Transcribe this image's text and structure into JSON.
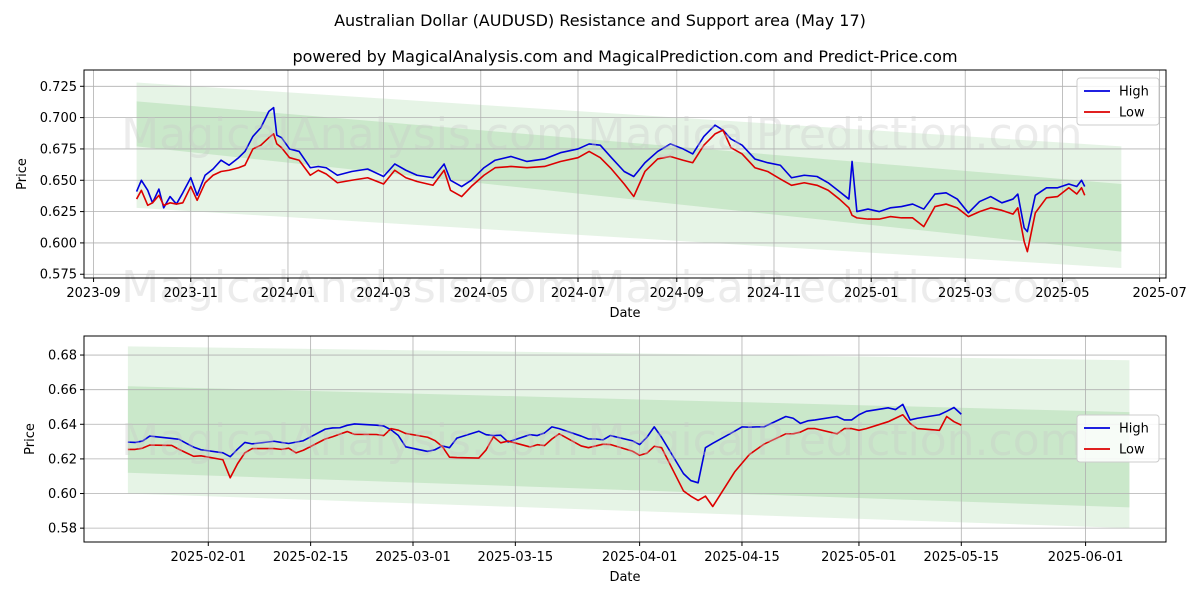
{
  "title": "Australian Dollar (AUDUSD) Resistance and Support area (May 17)",
  "subtitle": "powered by MagicalAnalysis.com and MagicalPrediction.com and Predict-Price.com",
  "watermarks": [
    "MagicalAnalysis.com",
    "MagicalPrediction.com"
  ],
  "colors": {
    "high": "#0000dd",
    "low": "#dd0000",
    "band": "#4caf50",
    "grid": "#b0b0b0"
  },
  "chart_data": [
    {
      "type": "line",
      "xlabel": "Date",
      "ylabel": "Price",
      "xlim": [
        "2023-08-26",
        "2025-07-05"
      ],
      "ylim": [
        0.572,
        0.738
      ],
      "x_ticks": [
        "2023-09",
        "2023-11",
        "2024-01",
        "2024-03",
        "2024-05",
        "2024-07",
        "2024-09",
        "2024-11",
        "2025-01",
        "2025-03",
        "2025-05",
        "2025-07"
      ],
      "y_ticks": [
        0.575,
        0.6,
        0.625,
        0.65,
        0.675,
        0.7,
        0.725
      ],
      "grid": true,
      "legend_position": "top-right",
      "bands": [
        {
          "name": "outer",
          "x": [
            "2023-09-28",
            "2025-06-07"
          ],
          "upper": [
            0.728,
            0.677
          ],
          "lower": [
            0.628,
            0.58
          ]
        },
        {
          "name": "inner",
          "x": [
            "2023-09-28",
            "2025-06-07"
          ],
          "upper": [
            0.713,
            0.647
          ],
          "lower": [
            0.677,
            0.593
          ]
        }
      ],
      "series": [
        {
          "name": "High",
          "x": [
            "2023-09-28",
            "2023-10-01",
            "2023-10-05",
            "2023-10-08",
            "2023-10-12",
            "2023-10-15",
            "2023-10-19",
            "2023-10-23",
            "2023-10-27",
            "2023-11-01",
            "2023-11-05",
            "2023-11-10",
            "2023-11-15",
            "2023-11-20",
            "2023-11-25",
            "2023-12-01",
            "2023-12-05",
            "2023-12-10",
            "2023-12-15",
            "2023-12-20",
            "2023-12-23",
            "2023-12-25",
            "2023-12-28",
            "2024-01-02",
            "2024-01-08",
            "2024-01-15",
            "2024-01-20",
            "2024-01-25",
            "2024-02-01",
            "2024-02-10",
            "2024-02-20",
            "2024-03-01",
            "2024-03-08",
            "2024-03-15",
            "2024-03-22",
            "2024-04-01",
            "2024-04-08",
            "2024-04-12",
            "2024-04-19",
            "2024-04-25",
            "2024-05-03",
            "2024-05-10",
            "2024-05-20",
            "2024-05-30",
            "2024-06-10",
            "2024-06-20",
            "2024-07-01",
            "2024-07-08",
            "2024-07-15",
            "2024-07-22",
            "2024-07-30",
            "2024-08-05",
            "2024-08-12",
            "2024-08-20",
            "2024-08-28",
            "2024-09-05",
            "2024-09-11",
            "2024-09-18",
            "2024-09-25",
            "2024-09-30",
            "2024-10-05",
            "2024-10-12",
            "2024-10-20",
            "2024-10-28",
            "2024-11-05",
            "2024-11-12",
            "2024-11-20",
            "2024-11-28",
            "2024-12-05",
            "2024-12-12",
            "2024-12-18",
            "2024-12-20",
            "2024-12-23",
            "2024-12-30",
            "2025-01-06",
            "2025-01-13",
            "2025-01-20",
            "2025-01-27",
            "2025-02-03",
            "2025-02-10",
            "2025-02-17",
            "2025-02-24",
            "2025-03-03",
            "2025-03-10",
            "2025-03-17",
            "2025-03-24",
            "2025-03-31",
            "2025-04-03",
            "2025-04-07",
            "2025-04-09",
            "2025-04-14",
            "2025-04-21",
            "2025-04-28",
            "2025-05-05",
            "2025-05-10",
            "2025-05-13",
            "2025-05-15"
          ],
          "y": [
            0.641,
            0.65,
            0.642,
            0.632,
            0.643,
            0.628,
            0.637,
            0.631,
            0.64,
            0.652,
            0.638,
            0.654,
            0.659,
            0.666,
            0.662,
            0.668,
            0.673,
            0.685,
            0.692,
            0.705,
            0.708,
            0.686,
            0.684,
            0.675,
            0.673,
            0.66,
            0.661,
            0.66,
            0.654,
            0.657,
            0.659,
            0.653,
            0.663,
            0.658,
            0.654,
            0.652,
            0.663,
            0.65,
            0.645,
            0.65,
            0.66,
            0.666,
            0.669,
            0.665,
            0.667,
            0.672,
            0.675,
            0.679,
            0.678,
            0.668,
            0.657,
            0.653,
            0.664,
            0.673,
            0.679,
            0.675,
            0.671,
            0.685,
            0.694,
            0.69,
            0.683,
            0.678,
            0.667,
            0.664,
            0.662,
            0.652,
            0.654,
            0.653,
            0.648,
            0.641,
            0.635,
            0.665,
            0.625,
            0.627,
            0.625,
            0.628,
            0.629,
            0.631,
            0.627,
            0.639,
            0.64,
            0.635,
            0.624,
            0.633,
            0.637,
            0.632,
            0.635,
            0.639,
            0.612,
            0.609,
            0.638,
            0.644,
            0.644,
            0.647,
            0.645,
            0.65,
            0.645
          ]
        },
        {
          "name": "Low",
          "x": [
            "2023-09-28",
            "2023-10-01",
            "2023-10-05",
            "2023-10-08",
            "2023-10-12",
            "2023-10-15",
            "2023-10-19",
            "2023-10-23",
            "2023-10-27",
            "2023-11-01",
            "2023-11-05",
            "2023-11-10",
            "2023-11-15",
            "2023-11-20",
            "2023-11-25",
            "2023-12-01",
            "2023-12-05",
            "2023-12-10",
            "2023-12-15",
            "2023-12-20",
            "2023-12-23",
            "2023-12-25",
            "2023-12-28",
            "2024-01-02",
            "2024-01-08",
            "2024-01-15",
            "2024-01-20",
            "2024-01-25",
            "2024-02-01",
            "2024-02-10",
            "2024-02-20",
            "2024-03-01",
            "2024-03-08",
            "2024-03-15",
            "2024-03-22",
            "2024-04-01",
            "2024-04-08",
            "2024-04-12",
            "2024-04-19",
            "2024-04-25",
            "2024-05-03",
            "2024-05-10",
            "2024-05-20",
            "2024-05-30",
            "2024-06-10",
            "2024-06-20",
            "2024-07-01",
            "2024-07-08",
            "2024-07-15",
            "2024-07-22",
            "2024-07-30",
            "2024-08-05",
            "2024-08-12",
            "2024-08-20",
            "2024-08-28",
            "2024-09-05",
            "2024-09-11",
            "2024-09-18",
            "2024-09-25",
            "2024-09-30",
            "2024-10-05",
            "2024-10-12",
            "2024-10-20",
            "2024-10-28",
            "2024-11-05",
            "2024-11-12",
            "2024-11-20",
            "2024-11-28",
            "2024-12-05",
            "2024-12-12",
            "2024-12-18",
            "2024-12-20",
            "2024-12-23",
            "2024-12-30",
            "2025-01-06",
            "2025-01-13",
            "2025-01-20",
            "2025-01-27",
            "2025-02-03",
            "2025-02-10",
            "2025-02-17",
            "2025-02-24",
            "2025-03-03",
            "2025-03-10",
            "2025-03-17",
            "2025-03-24",
            "2025-03-31",
            "2025-04-03",
            "2025-04-07",
            "2025-04-09",
            "2025-04-14",
            "2025-04-21",
            "2025-04-28",
            "2025-05-05",
            "2025-05-10",
            "2025-05-13",
            "2025-05-15"
          ],
          "y": [
            0.635,
            0.642,
            0.63,
            0.632,
            0.638,
            0.63,
            0.632,
            0.631,
            0.632,
            0.645,
            0.634,
            0.648,
            0.654,
            0.657,
            0.658,
            0.66,
            0.662,
            0.675,
            0.678,
            0.684,
            0.687,
            0.679,
            0.676,
            0.668,
            0.666,
            0.654,
            0.658,
            0.655,
            0.648,
            0.65,
            0.652,
            0.647,
            0.658,
            0.652,
            0.649,
            0.646,
            0.658,
            0.642,
            0.637,
            0.645,
            0.654,
            0.66,
            0.661,
            0.66,
            0.661,
            0.665,
            0.668,
            0.673,
            0.668,
            0.659,
            0.647,
            0.637,
            0.657,
            0.667,
            0.669,
            0.666,
            0.664,
            0.678,
            0.687,
            0.69,
            0.676,
            0.671,
            0.66,
            0.657,
            0.651,
            0.646,
            0.648,
            0.646,
            0.642,
            0.635,
            0.628,
            0.622,
            0.62,
            0.619,
            0.619,
            0.621,
            0.62,
            0.62,
            0.613,
            0.629,
            0.631,
            0.628,
            0.621,
            0.625,
            0.628,
            0.626,
            0.623,
            0.628,
            0.601,
            0.593,
            0.624,
            0.636,
            0.637,
            0.644,
            0.639,
            0.644,
            0.638
          ]
        }
      ]
    },
    {
      "type": "line",
      "xlabel": "Date",
      "ylabel": "Price",
      "xlim": [
        "2025-01-15",
        "2025-06-12"
      ],
      "ylim": [
        0.572,
        0.691
      ],
      "x_ticks": [
        "2025-02-01",
        "2025-02-15",
        "2025-03-01",
        "2025-03-15",
        "2025-04-01",
        "2025-04-15",
        "2025-05-01",
        "2025-05-15",
        "2025-06-01"
      ],
      "y_ticks": [
        0.58,
        0.6,
        0.62,
        0.64,
        0.66,
        0.68
      ],
      "grid": true,
      "legend_position": "center-right",
      "bands": [
        {
          "name": "outer",
          "x": [
            "2025-01-21",
            "2025-06-07"
          ],
          "upper": [
            0.685,
            0.677
          ],
          "lower": [
            0.6,
            0.58
          ]
        },
        {
          "name": "inner",
          "x": [
            "2025-01-21",
            "2025-06-07"
          ],
          "upper": [
            0.662,
            0.647
          ],
          "lower": [
            0.612,
            0.592
          ]
        }
      ],
      "series": [
        {
          "name": "High",
          "x": [
            "2025-01-21",
            "2025-01-22",
            "2025-01-23",
            "2025-01-24",
            "2025-01-27",
            "2025-01-28",
            "2025-01-29",
            "2025-01-30",
            "2025-01-31",
            "2025-02-03",
            "2025-02-04",
            "2025-02-05",
            "2025-02-06",
            "2025-02-07",
            "2025-02-10",
            "2025-02-11",
            "2025-02-12",
            "2025-02-13",
            "2025-02-14",
            "2025-02-17",
            "2025-02-18",
            "2025-02-19",
            "2025-02-20",
            "2025-02-21",
            "2025-02-24",
            "2025-02-25",
            "2025-02-26",
            "2025-02-27",
            "2025-02-28",
            "2025-03-03",
            "2025-03-04",
            "2025-03-05",
            "2025-03-06",
            "2025-03-07",
            "2025-03-10",
            "2025-03-11",
            "2025-03-12",
            "2025-03-13",
            "2025-03-14",
            "2025-03-17",
            "2025-03-18",
            "2025-03-19",
            "2025-03-20",
            "2025-03-21",
            "2025-03-24",
            "2025-03-25",
            "2025-03-26",
            "2025-03-27",
            "2025-03-28",
            "2025-03-31",
            "2025-04-01",
            "2025-04-02",
            "2025-04-03",
            "2025-04-04",
            "2025-04-07",
            "2025-04-08",
            "2025-04-09",
            "2025-04-10",
            "2025-04-11",
            "2025-04-14",
            "2025-04-15",
            "2025-04-16",
            "2025-04-17",
            "2025-04-18",
            "2025-04-21",
            "2025-04-22",
            "2025-04-23",
            "2025-04-24",
            "2025-04-25",
            "2025-04-28",
            "2025-04-29",
            "2025-04-30",
            "2025-05-01",
            "2025-05-02",
            "2025-05-05",
            "2025-05-06",
            "2025-05-07",
            "2025-05-08",
            "2025-05-09",
            "2025-05-12",
            "2025-05-13",
            "2025-05-14",
            "2025-05-15"
          ],
          "y": [
            0.6297,
            0.6295,
            0.6303,
            0.6332,
            0.6318,
            0.6313,
            0.629,
            0.6268,
            0.6253,
            0.6235,
            0.6213,
            0.6256,
            0.6295,
            0.6287,
            0.6302,
            0.6295,
            0.6289,
            0.6297,
            0.6305,
            0.6372,
            0.6379,
            0.638,
            0.6394,
            0.6402,
            0.6395,
            0.639,
            0.6368,
            0.6335,
            0.627,
            0.6243,
            0.6253,
            0.6275,
            0.6265,
            0.632,
            0.636,
            0.634,
            0.6335,
            0.6337,
            0.6298,
            0.634,
            0.6335,
            0.635,
            0.6385,
            0.6375,
            0.6332,
            0.6315,
            0.6315,
            0.631,
            0.6335,
            0.6305,
            0.6283,
            0.6325,
            0.6385,
            0.6325,
            0.6115,
            0.6075,
            0.6062,
            0.6265,
            0.629,
            0.636,
            0.6385,
            0.6383,
            0.6385,
            0.6385,
            0.6445,
            0.6435,
            0.6405,
            0.642,
            0.6425,
            0.6445,
            0.6425,
            0.6425,
            0.6455,
            0.6475,
            0.6495,
            0.6485,
            0.6515,
            0.6425,
            0.6435,
            0.6455,
            0.6475,
            0.6497,
            0.6458
          ]
        },
        {
          "name": "Low",
          "x": [
            "2025-01-21",
            "2025-01-22",
            "2025-01-23",
            "2025-01-24",
            "2025-01-27",
            "2025-01-28",
            "2025-01-29",
            "2025-01-30",
            "2025-01-31",
            "2025-02-03",
            "2025-02-04",
            "2025-02-05",
            "2025-02-06",
            "2025-02-07",
            "2025-02-10",
            "2025-02-11",
            "2025-02-12",
            "2025-02-13",
            "2025-02-14",
            "2025-02-17",
            "2025-02-18",
            "2025-02-19",
            "2025-02-20",
            "2025-02-21",
            "2025-02-24",
            "2025-02-25",
            "2025-02-26",
            "2025-02-27",
            "2025-02-28",
            "2025-03-03",
            "2025-03-04",
            "2025-03-05",
            "2025-03-06",
            "2025-03-07",
            "2025-03-10",
            "2025-03-11",
            "2025-03-12",
            "2025-03-13",
            "2025-03-14",
            "2025-03-17",
            "2025-03-18",
            "2025-03-19",
            "2025-03-20",
            "2025-03-21",
            "2025-03-24",
            "2025-03-25",
            "2025-03-26",
            "2025-03-27",
            "2025-03-28",
            "2025-03-31",
            "2025-04-01",
            "2025-04-02",
            "2025-04-03",
            "2025-04-04",
            "2025-04-07",
            "2025-04-08",
            "2025-04-09",
            "2025-04-10",
            "2025-04-11",
            "2025-04-14",
            "2025-04-15",
            "2025-04-16",
            "2025-04-17",
            "2025-04-18",
            "2025-04-21",
            "2025-04-22",
            "2025-04-23",
            "2025-04-24",
            "2025-04-25",
            "2025-04-28",
            "2025-04-29",
            "2025-04-30",
            "2025-05-01",
            "2025-05-02",
            "2025-05-05",
            "2025-05-06",
            "2025-05-07",
            "2025-05-08",
            "2025-05-09",
            "2025-05-12",
            "2025-05-13",
            "2025-05-14",
            "2025-05-15"
          ],
          "y": [
            0.6255,
            0.6255,
            0.6262,
            0.628,
            0.6278,
            0.6255,
            0.6235,
            0.6215,
            0.6218,
            0.6195,
            0.6091,
            0.6172,
            0.6235,
            0.626,
            0.626,
            0.6255,
            0.6262,
            0.6235,
            0.625,
            0.6315,
            0.6328,
            0.6343,
            0.6358,
            0.6342,
            0.6341,
            0.6335,
            0.6375,
            0.6366,
            0.6347,
            0.6325,
            0.6306,
            0.6272,
            0.621,
            0.6208,
            0.6205,
            0.6252,
            0.6328,
            0.6293,
            0.6303,
            0.6269,
            0.6282,
            0.6277,
            0.6315,
            0.6345,
            0.6275,
            0.6265,
            0.6275,
            0.6285,
            0.6283,
            0.6245,
            0.6221,
            0.6233,
            0.6273,
            0.6265,
            0.6015,
            0.5985,
            0.596,
            0.5985,
            0.5925,
            0.6125,
            0.6175,
            0.6225,
            0.6255,
            0.6285,
            0.6345,
            0.6345,
            0.6355,
            0.6375,
            0.6375,
            0.6345,
            0.6375,
            0.6375,
            0.6365,
            0.6375,
            0.6415,
            0.6435,
            0.6455,
            0.6405,
            0.6375,
            0.6365,
            0.6445,
            0.6415,
            0.6395
          ]
        }
      ]
    }
  ]
}
